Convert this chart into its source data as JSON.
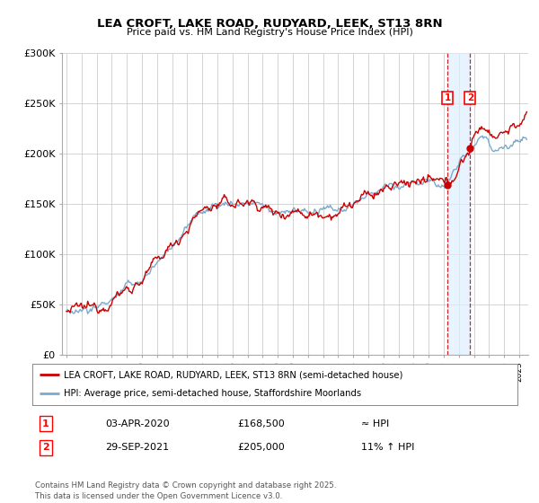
{
  "title": "LEA CROFT, LAKE ROAD, RUDYARD, LEEK, ST13 8RN",
  "subtitle": "Price paid vs. HM Land Registry's House Price Index (HPI)",
  "legend_line1": "LEA CROFT, LAKE ROAD, RUDYARD, LEEK, ST13 8RN (semi-detached house)",
  "legend_line2": "HPI: Average price, semi-detached house, Staffordshire Moorlands",
  "transaction1_date": "03-APR-2020",
  "transaction1_price": 168500,
  "transaction1_note": "≈ HPI",
  "transaction2_date": "29-SEP-2021",
  "transaction2_price": 205000,
  "transaction2_note": "11% ↑ HPI",
  "footer": "Contains HM Land Registry data © Crown copyright and database right 2025.\nThis data is licensed under the Open Government Licence v3.0.",
  "ylim_min": 0,
  "ylim_max": 300000,
  "yticks": [
    0,
    50000,
    100000,
    150000,
    200000,
    250000,
    300000
  ],
  "ytick_labels": [
    "£0",
    "£50K",
    "£100K",
    "£150K",
    "£200K",
    "£250K",
    "£300K"
  ],
  "line_color_property": "#cc0000",
  "line_color_hpi": "#7aaacc",
  "vline_color": "#cc0000",
  "shade_color": "#ddeeff",
  "background_color": "#ffffff",
  "grid_color": "#cccccc",
  "transaction1_x": 2020.25,
  "transaction2_x": 2021.75,
  "xmin": 1995,
  "xmax": 2025.5
}
